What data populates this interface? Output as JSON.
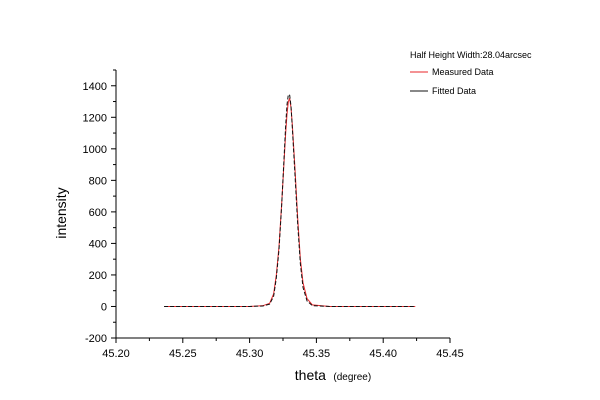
{
  "chart_data": {
    "type": "line",
    "title": "",
    "xlabel": "theta",
    "xlabel_unit": "(degree)",
    "ylabel": "intensity",
    "xlim": [
      45.2,
      45.45
    ],
    "ylim": [
      -200,
      1500
    ],
    "x_ticks": [
      "45.20",
      "45.25",
      "45.30",
      "45.35",
      "45.40",
      "45.45"
    ],
    "y_ticks": [
      "-200",
      "0",
      "200",
      "400",
      "600",
      "800",
      "1000",
      "1200",
      "1400"
    ],
    "grid": false,
    "legend": {
      "position": "top-right",
      "header": "Half Height Width:28.04arcsec"
    },
    "series": [
      {
        "name": "Measured Data",
        "color": "#e8262a",
        "x": [
          45.236,
          45.27,
          45.3,
          45.31,
          45.315,
          45.318,
          45.32,
          45.322,
          45.324,
          45.326,
          45.327,
          45.328,
          45.329,
          45.33,
          45.331,
          45.332,
          45.334,
          45.336,
          45.338,
          45.34,
          45.343,
          45.347,
          45.36,
          45.39,
          45.424
        ],
        "y": [
          0,
          0,
          0,
          5,
          20,
          80,
          200,
          380,
          650,
          950,
          1100,
          1220,
          1300,
          1320,
          1260,
          1150,
          870,
          560,
          300,
          150,
          50,
          10,
          0,
          0,
          0
        ]
      },
      {
        "name": "Fitted Data",
        "color": "#111111",
        "x": [
          45.236,
          45.27,
          45.3,
          45.31,
          45.315,
          45.318,
          45.32,
          45.322,
          45.324,
          45.326,
          45.327,
          45.328,
          45.329,
          45.33,
          45.331,
          45.332,
          45.334,
          45.336,
          45.338,
          45.34,
          45.343,
          45.347,
          45.36,
          45.39,
          45.424
        ],
        "y": [
          0,
          0,
          0,
          3,
          15,
          65,
          180,
          360,
          640,
          980,
          1150,
          1280,
          1345,
          1340,
          1270,
          1130,
          830,
          520,
          270,
          120,
          35,
          5,
          0,
          0,
          0
        ]
      }
    ]
  }
}
